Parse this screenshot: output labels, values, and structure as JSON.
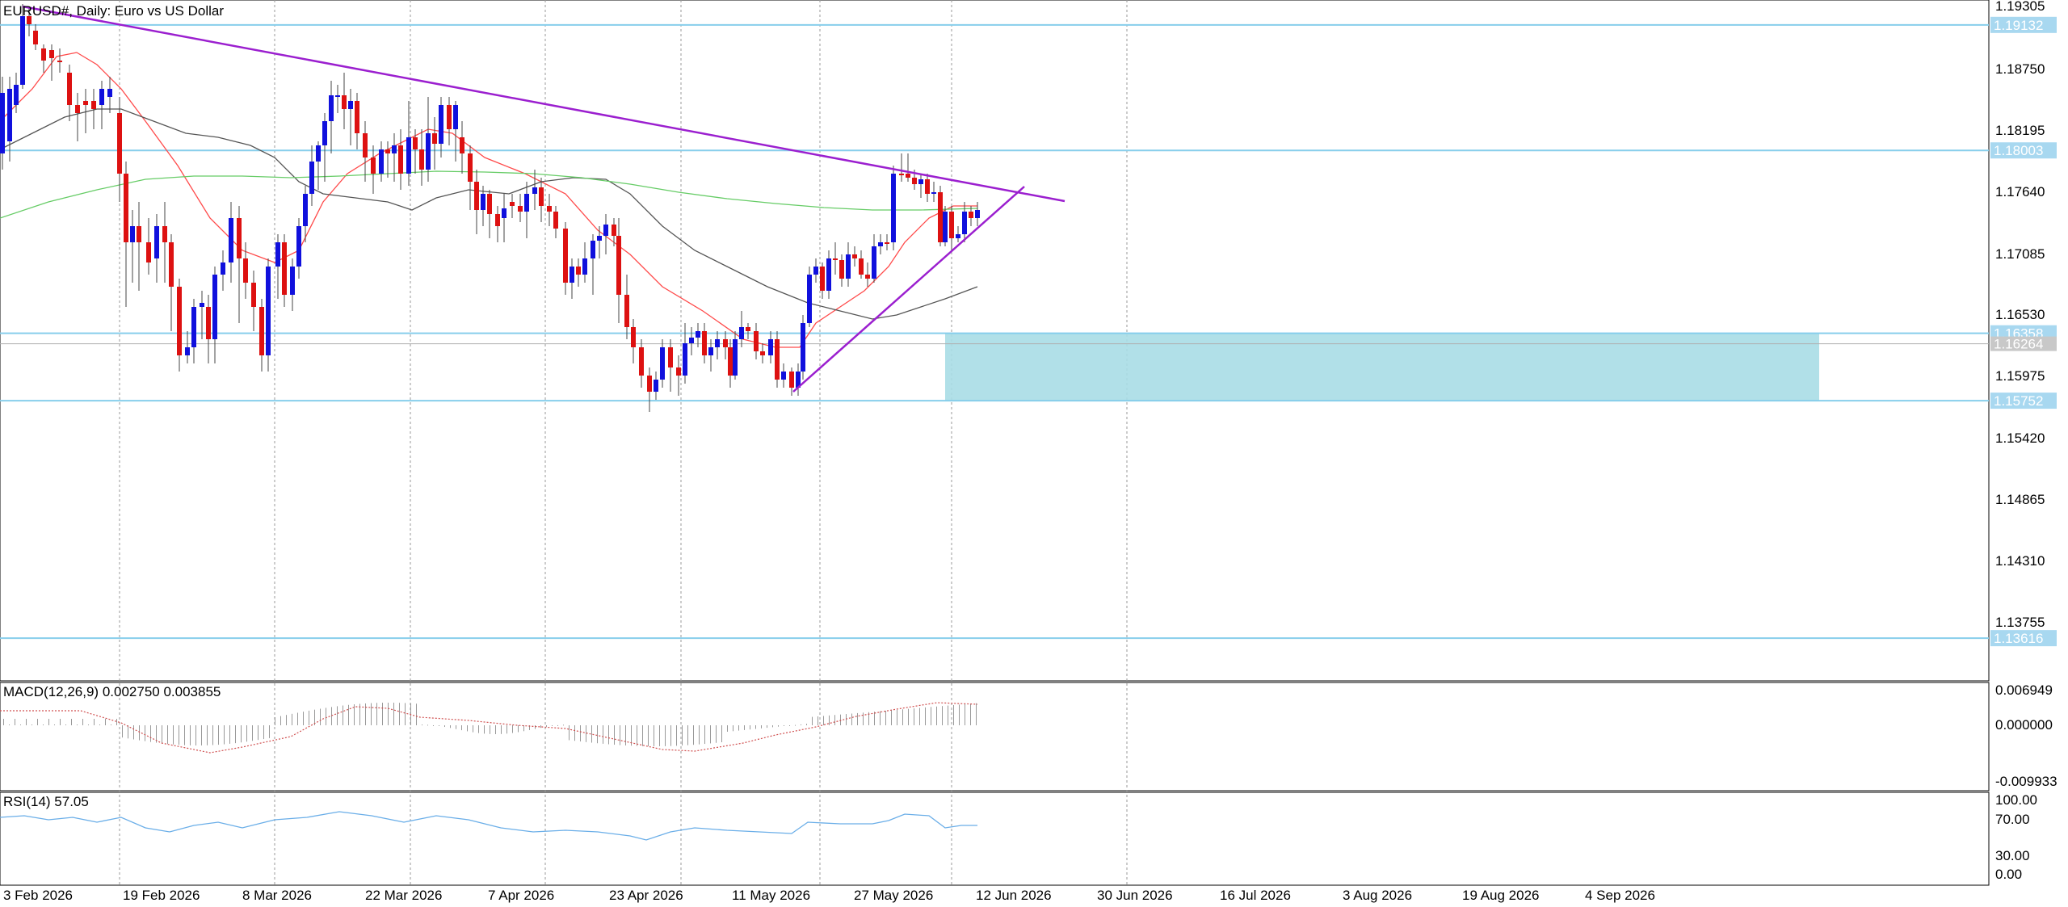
{
  "main_chart": {
    "title": "EURUSD#, Daily:  Euro vs US Dollar",
    "price_axis_labels": [
      "1.19305",
      "1.18750",
      "1.18195",
      "1.17640",
      "1.17085",
      "1.16530",
      "1.15975",
      "1.15420",
      "1.14865",
      "1.14310",
      "1.13755"
    ],
    "h_lines": [
      {
        "label": "1.19132",
        "price": 1.19132
      },
      {
        "label": "1.18003",
        "price": 1.18003
      },
      {
        "label": "1.16358",
        "price": 1.16358
      },
      {
        "label": "1.15752",
        "price": 1.15752
      },
      {
        "label": "1.13616",
        "price": 1.13616
      }
    ],
    "current_price": {
      "label": "1.16264",
      "price": 1.16264
    },
    "colors": {
      "bull": "#1010dd",
      "bear": "#dd1111",
      "hline": "#87ceeb",
      "label_bg": "#a8d8f0",
      "trendline": "#9b1fcf",
      "ma_fast": "#ff4a4a",
      "ma_slow": "#555555",
      "ma_long": "#66cc66",
      "zone": "#a8dde6",
      "macd": "#d05050",
      "rsi": "#6aaee8"
    }
  },
  "macd_panel": {
    "title": "MACD(12,26,9) 0.002750 0.003855",
    "axis_labels": [
      "0.006949",
      "0.000000",
      "-0.009933"
    ]
  },
  "rsi_panel": {
    "title": "RSI(14) 57.05",
    "axis_labels": [
      "100.00",
      "70.00",
      "30.00",
      "0.00"
    ]
  },
  "time_axis_labels": [
    "3 Feb 2026",
    "19 Feb 2026",
    "8 Mar 2026",
    "22 Mar 2026",
    "7 Apr 2026",
    "23 Apr 2026",
    "11 May 2026",
    "27 May 2026",
    "12 Jun 2026",
    "30 Jun 2026",
    "16 Jul 2026",
    "3 Aug 2026",
    "19 Aug 2026",
    "4 Sep 2026"
  ]
}
